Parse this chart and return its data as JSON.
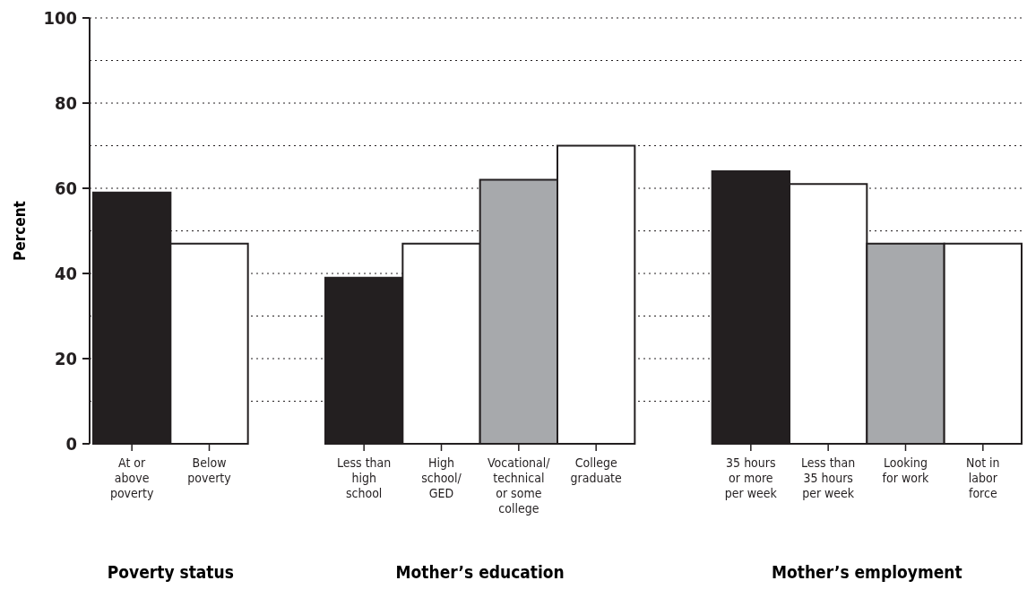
{
  "chart_data": {
    "type": "bar",
    "ylabel": "Percent",
    "categories": [
      "At or above poverty",
      "Below poverty",
      null,
      "Less than high school",
      "High school/ GED",
      "Vocational/ technical or some college",
      "College graduate",
      null,
      "35 hours or more per week",
      "Less than 35 hours per week",
      "Looking for work",
      "Not in labor force"
    ],
    "values": [
      59,
      47,
      null,
      39,
      47,
      62,
      70,
      null,
      64,
      61,
      47,
      47
    ],
    "colors": [
      "#231f20",
      "#ffffff",
      null,
      "#231f20",
      "#ffffff",
      "#a7a9ac",
      "#ffffff",
      null,
      "#231f20",
      "#ffffff",
      "#a7a9ac",
      "#ffffff"
    ],
    "ylim": [
      0,
      100
    ],
    "yticks": [
      0,
      {
        "value": 10,
        "label": null
      },
      20,
      {
        "value": 30,
        "label": null
      },
      40,
      {
        "value": 50,
        "label": null
      },
      60,
      {
        "value": 70,
        "label": null
      },
      80,
      {
        "value": 90,
        "label": null
      },
      100
    ],
    "grid": "y",
    "annotations": [
      "Poverty status",
      "Mother’s education",
      "Mother’s employment"
    ]
  }
}
